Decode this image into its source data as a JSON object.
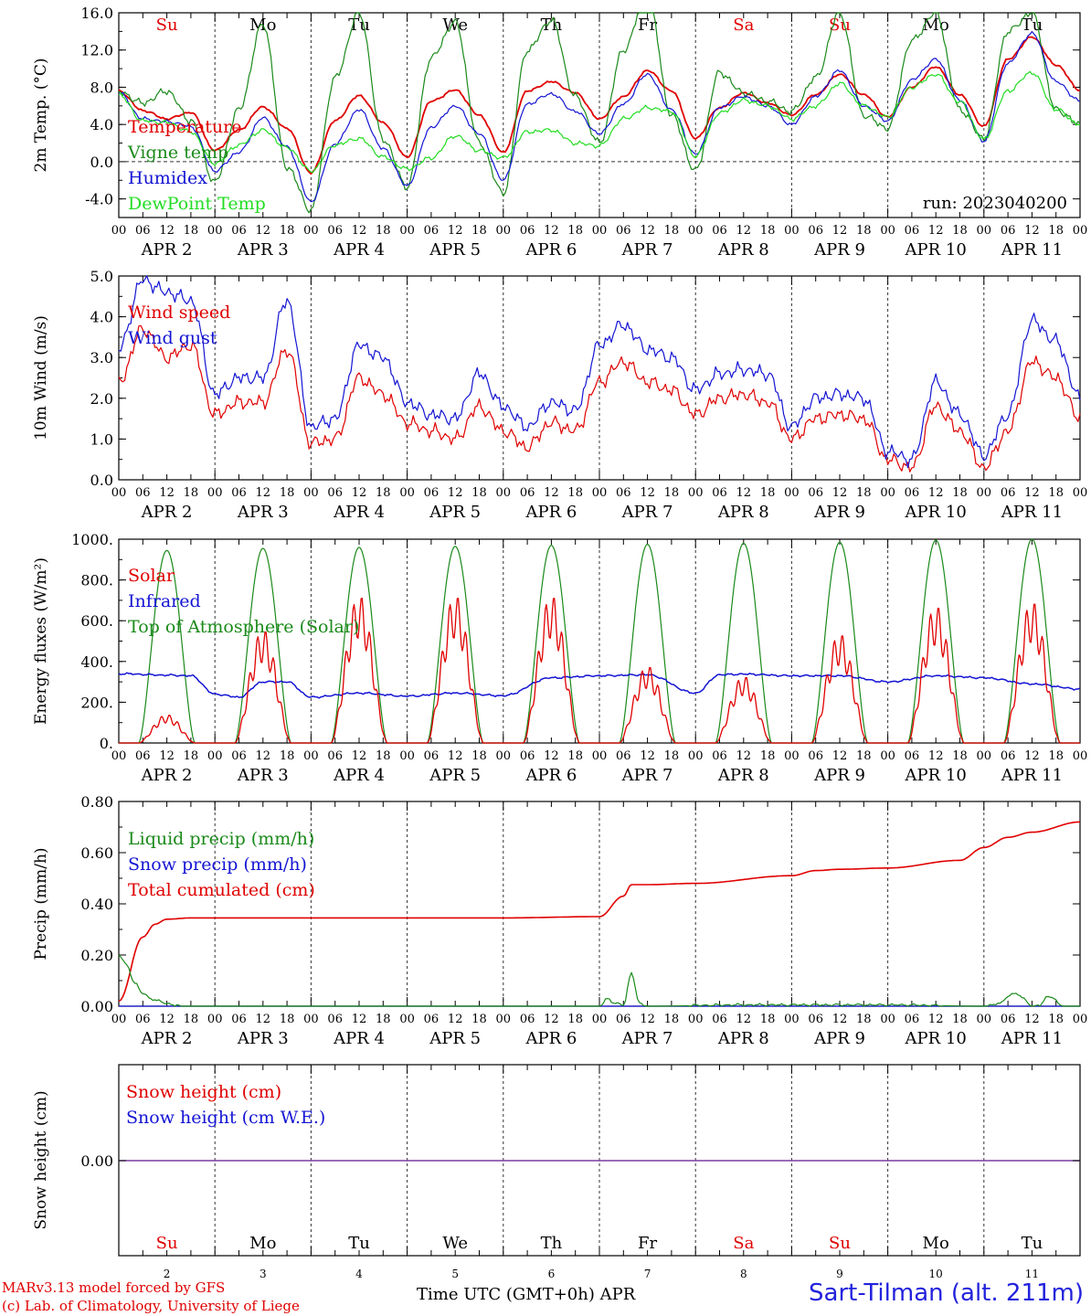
{
  "colors": {
    "red": "#e00000",
    "green": "#1a8a1a",
    "blue": "#1414d4",
    "lightgreen": "#22dd22",
    "purple": "#7a3ca0"
  },
  "day_axis": {
    "hour_ticks": [
      "00",
      "06",
      "12",
      "18",
      "00",
      "06",
      "12",
      "18",
      "00",
      "06",
      "12",
      "18",
      "00",
      "06",
      "12",
      "18",
      "00",
      "06",
      "12",
      "18",
      "00",
      "06",
      "12",
      "18",
      "00",
      "06",
      "12",
      "18",
      "00",
      "06",
      "12",
      "18",
      "00",
      "06",
      "12",
      "18",
      "00",
      "06",
      "12",
      "18",
      "00"
    ],
    "date_labels": [
      "APR  2",
      "APR  3",
      "APR  4",
      "APR  5",
      "APR  6",
      "APR  7",
      "APR  8",
      "APR  9",
      "APR 10",
      "APR 11"
    ],
    "weekday_labels": [
      "Su",
      "Mo",
      "Tu",
      "We",
      "Th",
      "Fr",
      "Sa",
      "Su",
      "Mo",
      "Tu"
    ],
    "weekday_colors": [
      "red",
      "black",
      "black",
      "black",
      "black",
      "black",
      "red",
      "red",
      "black",
      "black"
    ],
    "day_numbers": [
      "2",
      "3",
      "4",
      "5",
      "6",
      "7",
      "8",
      "9",
      "10",
      "11"
    ]
  },
  "footer": {
    "model": "MARv3.13 model forced by GFS",
    "copyright": "(c) Lab. of Climatology, University of Liege",
    "xlabel": "Time UTC (GMT+0h) APR",
    "station": "Sart-Tilman (alt. 211m)"
  },
  "chart_data": [
    {
      "type": "line",
      "ylabel": "2m Temp. (°C)",
      "ylim": [
        -6,
        16
      ],
      "yticks": [
        -4,
        0,
        4,
        8,
        12,
        16
      ],
      "ytick_labels": [
        "-4.0",
        "0.0",
        "4.0",
        "8.0",
        "12.0",
        "16.0"
      ],
      "zero_line": true,
      "annotation": "run: 2023040200",
      "x_hours": [
        0,
        6,
        12,
        18,
        24,
        30,
        36,
        42,
        48,
        54,
        60,
        66,
        72,
        78,
        84,
        90,
        96,
        102,
        108,
        114,
        120,
        126,
        132,
        138,
        144,
        150,
        156,
        162,
        168,
        174,
        180,
        186,
        192,
        198,
        204,
        210,
        216,
        222,
        228,
        234,
        240
      ],
      "series": [
        {
          "name": "Temperature",
          "color": "red",
          "values": [
            7.6,
            5.5,
            4.6,
            5.3,
            1.2,
            3.4,
            5.9,
            3.6,
            -1.2,
            4.4,
            7.1,
            4.2,
            0.5,
            6.5,
            7.7,
            5.0,
            1.0,
            7.6,
            8.6,
            7.4,
            4.6,
            7.0,
            9.8,
            7.6,
            2.5,
            5.8,
            7.4,
            6.3,
            5.0,
            7.2,
            9.4,
            7.2,
            4.8,
            8.0,
            10.2,
            7.2,
            3.8,
            11.0,
            13.4,
            10.4,
            7.7
          ]
        },
        {
          "name": "Vigne temp",
          "color": "green",
          "values": [
            7.5,
            6.3,
            7.6,
            4.4,
            -2.2,
            5.6,
            14.8,
            -0.6,
            -5.2,
            9.0,
            16.0,
            2.4,
            -2.7,
            11.2,
            15.0,
            2.0,
            -3.4,
            12.0,
            15.2,
            7.0,
            2.0,
            12.0,
            18.0,
            5.0,
            -1.0,
            9.6,
            7.4,
            6.5,
            5.4,
            9.0,
            16.0,
            5.0,
            3.6,
            13.0,
            16.0,
            5.6,
            2.5,
            14.0,
            16.0,
            5.6,
            4.0
          ]
        },
        {
          "name": "Humidex",
          "color": "blue",
          "values": [
            7.4,
            4.6,
            4.3,
            3.8,
            -1.0,
            1.0,
            4.7,
            1.6,
            -4.3,
            1.9,
            5.6,
            1.4,
            -2.6,
            3.7,
            6.0,
            3.0,
            -2.0,
            6.2,
            7.3,
            5.4,
            3.0,
            6.2,
            9.4,
            5.6,
            0.8,
            5.8,
            7.0,
            6.0,
            4.0,
            7.0,
            9.8,
            6.0,
            4.4,
            8.8,
            11.0,
            6.6,
            2.2,
            10.6,
            13.8,
            8.6,
            6.5
          ]
        },
        {
          "name": "DewPoint Temp",
          "color": "lightgreen",
          "values": [
            7.2,
            4.4,
            4.2,
            3.2,
            -0.2,
            1.8,
            3.4,
            1.5,
            -1.0,
            1.8,
            2.5,
            0.5,
            -0.8,
            0.4,
            2.8,
            1.2,
            0.4,
            3.2,
            3.4,
            2.0,
            1.7,
            4.6,
            5.8,
            5.4,
            0.6,
            5.2,
            6.6,
            6.0,
            4.6,
            6.0,
            8.4,
            6.0,
            4.8,
            8.0,
            9.4,
            6.4,
            2.4,
            7.6,
            9.6,
            5.6,
            4.0
          ]
        }
      ]
    },
    {
      "type": "line",
      "ylabel": "10m Wind (m/s)",
      "ylim": [
        0,
        5
      ],
      "yticks": [
        0,
        1,
        2,
        3,
        4,
        5
      ],
      "ytick_labels": [
        "0.0",
        "1.0",
        "2.0",
        "3.0",
        "4.0",
        "5.0"
      ],
      "x_hours": [
        0,
        6,
        12,
        18,
        24,
        30,
        36,
        42,
        48,
        54,
        60,
        66,
        72,
        78,
        84,
        90,
        96,
        102,
        108,
        114,
        120,
        126,
        132,
        138,
        144,
        150,
        156,
        162,
        168,
        174,
        180,
        186,
        192,
        198,
        204,
        210,
        216,
        222,
        228,
        234,
        240
      ],
      "series": [
        {
          "name": "Wind speed",
          "color": "red",
          "values": [
            2.4,
            3.7,
            3.0,
            3.3,
            1.6,
            1.9,
            1.9,
            3.2,
            0.9,
            1.0,
            2.5,
            2.1,
            1.4,
            1.2,
            1.0,
            1.8,
            1.2,
            0.8,
            1.4,
            1.2,
            2.4,
            2.9,
            2.4,
            2.2,
            1.6,
            2.0,
            2.1,
            1.9,
            1.0,
            1.5,
            1.6,
            1.5,
            0.5,
            0.3,
            1.8,
            1.2,
            0.3,
            1.2,
            2.9,
            2.5,
            1.5
          ]
        },
        {
          "name": "Wind gust",
          "color": "blue",
          "values": [
            3.2,
            4.9,
            4.6,
            4.4,
            2.1,
            2.5,
            2.5,
            4.4,
            1.3,
            1.5,
            3.3,
            3.0,
            1.9,
            1.6,
            1.5,
            2.6,
            1.8,
            1.3,
            1.9,
            1.7,
            3.3,
            3.8,
            3.2,
            3.0,
            2.2,
            2.6,
            2.7,
            2.6,
            1.3,
            2.0,
            2.1,
            2.0,
            0.7,
            0.5,
            2.4,
            1.6,
            0.6,
            1.6,
            3.9,
            3.4,
            2.0
          ]
        }
      ]
    },
    {
      "type": "line",
      "ylabel": "Energy fluxes (W/m²)",
      "ylim": [
        0,
        1000
      ],
      "yticks": [
        0,
        200,
        400,
        600,
        800,
        1000
      ],
      "ytick_labels": [
        "0.",
        "200.",
        "400.",
        "600.",
        "800.",
        "1000."
      ],
      "daylight_hours": [
        5,
        19
      ],
      "series": [
        {
          "name": "Solar",
          "color": "red",
          "daily_peaks": [
            140,
            560,
            730,
            730,
            730,
            380,
            330,
            540,
            680,
            700
          ]
        },
        {
          "name": "Infrared",
          "color": "blue",
          "x_hours": [
            0,
            12,
            18,
            24,
            30,
            36,
            42,
            48,
            60,
            72,
            84,
            96,
            108,
            120,
            132,
            144,
            150,
            156,
            168,
            180,
            192,
            204,
            216,
            228,
            240
          ],
          "values": [
            340,
            333,
            330,
            240,
            225,
            300,
            300,
            225,
            245,
            230,
            245,
            232,
            320,
            330,
            335,
            245,
            335,
            338,
            330,
            330,
            300,
            330,
            320,
            290,
            265
          ]
        },
        {
          "name": "Top of Atmosphere (Solar)",
          "color": "green",
          "daily_peaks": [
            945,
            955,
            960,
            965,
            970,
            975,
            980,
            985,
            995,
            1000
          ]
        }
      ]
    },
    {
      "type": "line",
      "ylabel": "Precip (mm/h)",
      "ylim": [
        0,
        0.8
      ],
      "yticks": [
        0,
        0.2,
        0.4,
        0.6,
        0.8
      ],
      "ytick_labels": [
        "0.00",
        "0.20",
        "0.40",
        "0.60",
        "0.80"
      ],
      "series": [
        {
          "name": "Liquid precip (mm/h)",
          "color": "green",
          "x_hours": [
            0,
            2,
            4,
            6,
            8,
            10,
            12,
            14,
            16,
            120,
            122,
            124,
            126,
            128,
            130,
            132,
            156,
            192,
            216,
            220,
            222,
            224,
            226,
            228,
            230,
            232,
            236,
            240
          ],
          "values": [
            0.2,
            0.16,
            0.09,
            0.05,
            0.03,
            0.02,
            0.01,
            0.005,
            0,
            0,
            0.03,
            0.01,
            0.005,
            0.13,
            0.01,
            0,
            0.005,
            0.005,
            0,
            0.01,
            0.04,
            0.05,
            0.03,
            0,
            0.005,
            0.04,
            0,
            0
          ]
        },
        {
          "name": "Snow precip (mm/h)",
          "color": "blue",
          "x_hours": [
            0,
            240
          ],
          "values": [
            0,
            0
          ]
        },
        {
          "name": "Total cumulated (cm)",
          "color": "red",
          "x_hours": [
            0,
            6,
            9,
            12,
            18,
            24,
            48,
            96,
            120,
            126,
            128,
            132,
            144,
            168,
            174,
            180,
            192,
            210,
            216,
            222,
            228,
            240
          ],
          "values": [
            0.02,
            0.27,
            0.32,
            0.34,
            0.345,
            0.345,
            0.345,
            0.345,
            0.35,
            0.43,
            0.475,
            0.475,
            0.48,
            0.51,
            0.53,
            0.535,
            0.54,
            0.57,
            0.62,
            0.66,
            0.68,
            0.72
          ]
        }
      ]
    },
    {
      "type": "line",
      "ylabel": "Snow height (cm)",
      "zero_label": "0.00",
      "series": [
        {
          "name": "Snow height (cm)",
          "color": "red",
          "x_hours": [
            0,
            240
          ],
          "values": [
            0,
            0
          ]
        },
        {
          "name": "Snow height (cm W.E.)",
          "color": "blue",
          "x_hours": [
            0,
            240
          ],
          "values": [
            0,
            0
          ]
        }
      ]
    }
  ]
}
